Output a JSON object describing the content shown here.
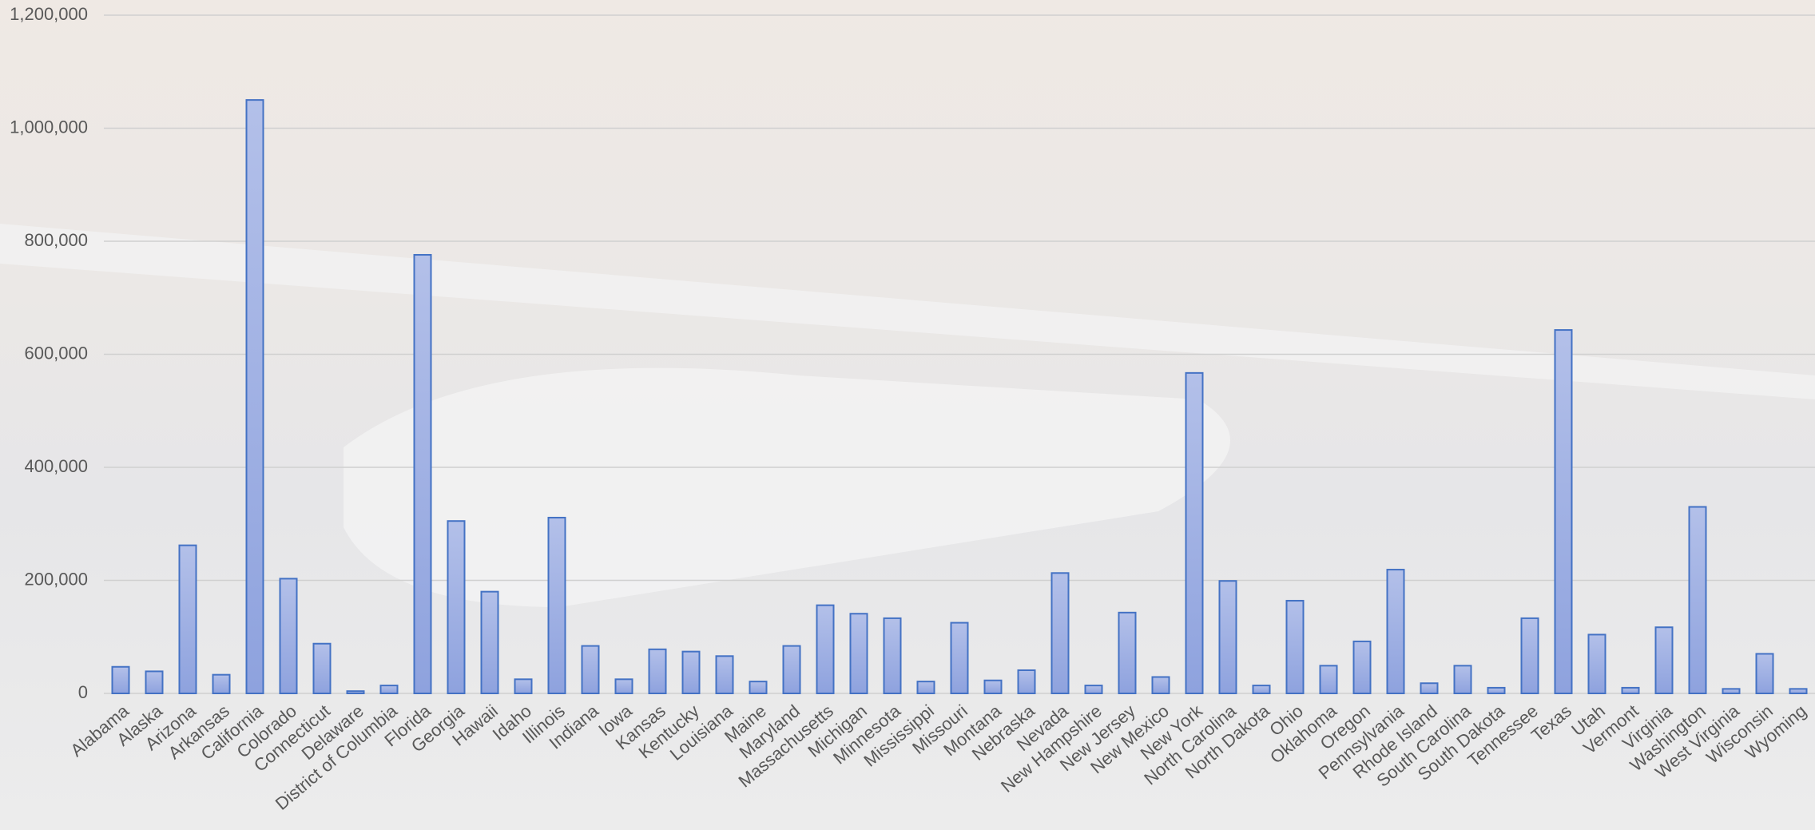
{
  "chart_data": {
    "type": "bar",
    "categories": [
      "Alabama",
      "Alaska",
      "Arizona",
      "Arkansas",
      "California",
      "Colorado",
      "Connecticut",
      "Delaware",
      "District of Columbia",
      "Florida",
      "Georgia",
      "Hawaii",
      "Idaho",
      "Illinois",
      "Indiana",
      "Iowa",
      "Kansas",
      "Kentucky",
      "Louisiana",
      "Maine",
      "Maryland",
      "Massachusetts",
      "Michigan",
      "Minnesota",
      "Mississippi",
      "Missouri",
      "Montana",
      "Nebraska",
      "Nevada",
      "New Hampshire",
      "New Jersey",
      "New Mexico",
      "New York",
      "North Carolina",
      "North Dakota",
      "Ohio",
      "Oklahoma",
      "Oregon",
      "Pennsylvania",
      "Rhode Island",
      "South Carolina",
      "South Dakota",
      "Tennessee",
      "Texas",
      "Utah",
      "Vermont",
      "Virginia",
      "Washington",
      "West Virginia",
      "Wisconsin",
      "Wyoming"
    ],
    "values": [
      47000,
      39000,
      262000,
      33000,
      1050000,
      203000,
      88000,
      4000,
      14000,
      776000,
      305000,
      180000,
      25000,
      311000,
      84000,
      25000,
      78000,
      74000,
      66000,
      21000,
      84000,
      156000,
      141000,
      133000,
      21000,
      125000,
      23000,
      41000,
      213000,
      14000,
      143000,
      29000,
      567000,
      199000,
      14000,
      164000,
      49000,
      92000,
      219000,
      18000,
      49000,
      10000,
      133000,
      643000,
      104000,
      10000,
      117000,
      330000,
      8000,
      70000,
      8000
    ],
    "color": "#4472c4",
    "ylim": [
      0,
      1200000
    ],
    "yticks": [
      0,
      {
        "value": 200000,
        "label": "200,000"
      },
      {
        "value": 400000,
        "label": "400,000"
      },
      {
        "value": 600000,
        "label": "600,000"
      },
      {
        "value": 800000,
        "label": "800,000"
      },
      {
        "value": 1000000,
        "label": "1,000,000"
      },
      {
        "value": 1200000,
        "label": "1,200,000"
      }
    ],
    "grid": true
  }
}
